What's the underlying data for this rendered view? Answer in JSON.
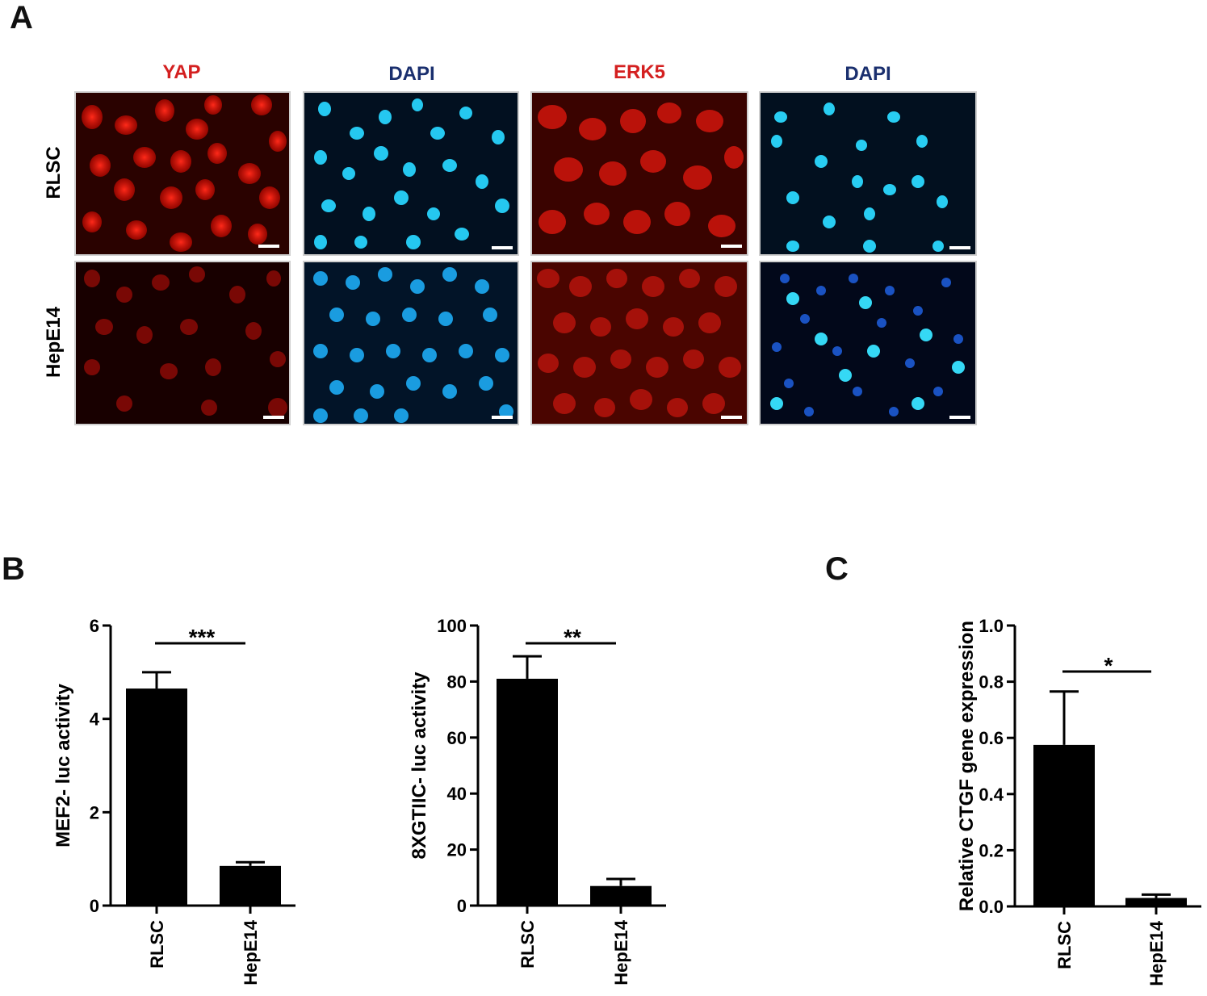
{
  "panels": {
    "a": "A",
    "b": "B",
    "c": "C"
  },
  "micrographs": {
    "columns": [
      {
        "label": "YAP",
        "color": "#d42020"
      },
      {
        "label": "DAPI",
        "color": "#1a2f6e"
      },
      {
        "label": "ERK5",
        "color": "#d42020"
      },
      {
        "label": "DAPI",
        "color": "#1a2f6e"
      }
    ],
    "rows": [
      "RLSC",
      "HepE14"
    ]
  },
  "chart_data": [
    {
      "type": "bar",
      "categories": [
        "RLSC",
        "HepE14"
      ],
      "values": [
        4.65,
        0.85
      ],
      "errors": [
        0.35,
        0.08
      ],
      "ylabel": "MEF2- luc activity",
      "ylim": [
        0,
        6
      ],
      "yticks": [
        "0",
        "2",
        "4",
        "6"
      ],
      "significance": "***"
    },
    {
      "type": "bar",
      "categories": [
        "RLSC",
        "HepE14"
      ],
      "values": [
        81,
        7
      ],
      "errors": [
        8,
        2.5
      ],
      "ylabel": "8XGTIIC- luc activity",
      "ylim": [
        0,
        100
      ],
      "yticks": [
        "0",
        "20",
        "40",
        "60",
        "80",
        "100"
      ],
      "significance": "**"
    },
    {
      "type": "bar",
      "categories": [
        "RLSC",
        "HepE14"
      ],
      "values": [
        0.575,
        0.03
      ],
      "errors": [
        0.19,
        0.012
      ],
      "ylabel": "Relative CTGF gene expression",
      "ylim": [
        0,
        1.0
      ],
      "yticks": [
        "0.0",
        "0.2",
        "0.4",
        "0.6",
        "0.8",
        "1.0"
      ],
      "significance": "*"
    }
  ]
}
